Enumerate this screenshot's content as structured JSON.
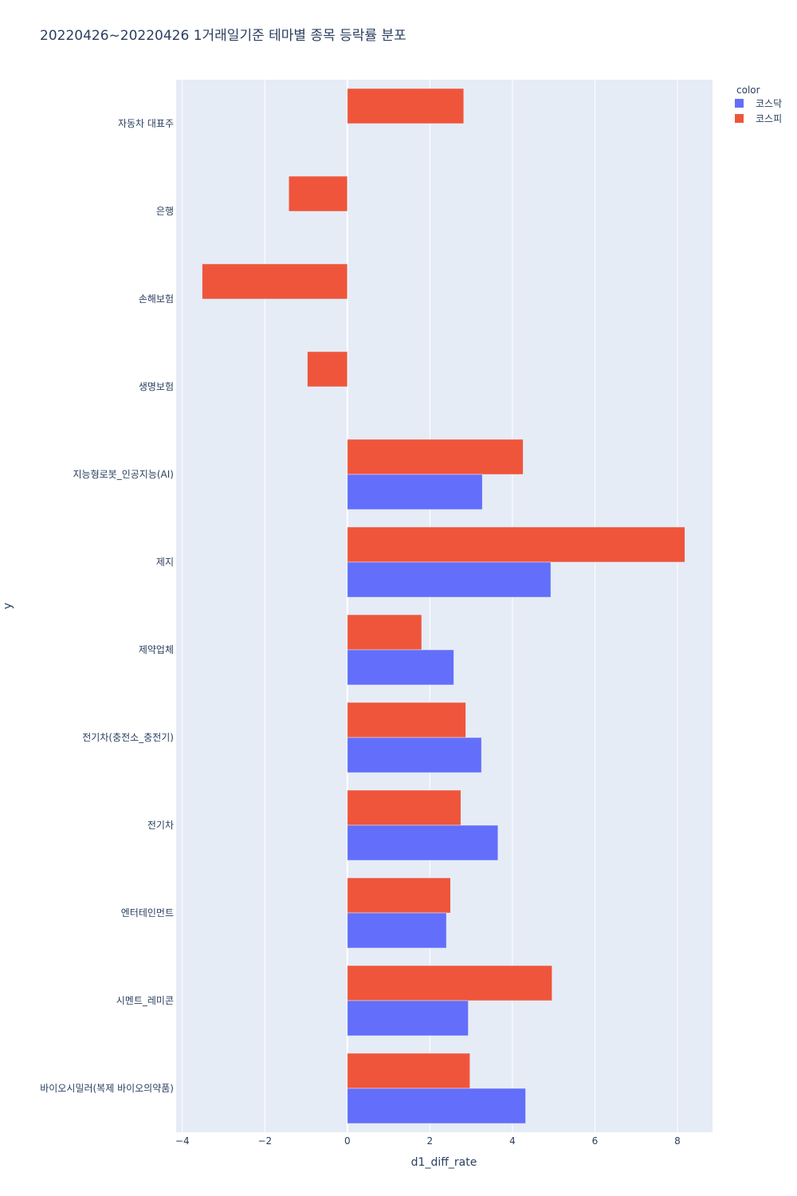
{
  "chart_data": {
    "type": "bar",
    "orientation": "horizontal",
    "title": "20220426~20220426 1거래일기준 테마별 종목 등락률 분포",
    "xlabel": "d1_diff_rate",
    "ylabel": "y",
    "xlim": [
      -4.15,
      8.85
    ],
    "xticks": [
      -4,
      -2,
      0,
      2,
      4,
      6,
      8
    ],
    "xtick_labels": [
      "−4",
      "−2",
      "0",
      "2",
      "4",
      "6",
      "8"
    ],
    "categories": [
      "자동차 대표주",
      "은행",
      "손해보험",
      "생명보험",
      "지능형로봇_인공지능(AI)",
      "제지",
      "제약업체",
      "전기차(충전소_충전기)",
      "전기차",
      "엔터테인먼트",
      "시멘트_레미콘",
      "바이오시밀러(복제 바이오의약품)"
    ],
    "legend_title": "color",
    "legend_position": "top-right",
    "series": [
      {
        "name": "코스닥",
        "color": "#636efa",
        "values": [
          null,
          null,
          null,
          null,
          3.27,
          4.93,
          2.58,
          3.25,
          3.65,
          2.4,
          2.93,
          4.32
        ]
      },
      {
        "name": "코스피",
        "color": "#ef553b",
        "values": [
          2.82,
          -1.42,
          -3.52,
          -0.97,
          4.26,
          8.18,
          1.8,
          2.87,
          2.75,
          2.5,
          4.96,
          2.97
        ]
      }
    ]
  }
}
